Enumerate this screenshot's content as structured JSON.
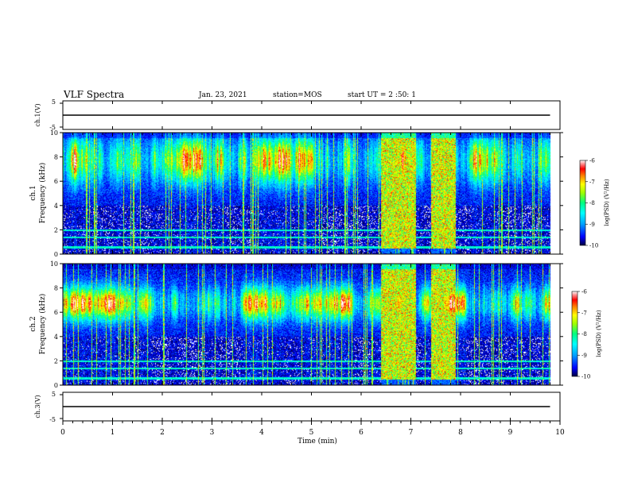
{
  "header": {
    "title": "VLF Spectra",
    "date": "Jan. 23, 2021",
    "station": "station=MOS",
    "start_ut": "start UT =  2 :50: 1"
  },
  "chart_data": [
    {
      "type": "line",
      "panel": "ch1-waveform",
      "ylabel": "ch.1(V)",
      "ylim": [
        -5,
        5
      ],
      "y_ticks": [
        "5",
        "-5"
      ],
      "xlim": [
        0,
        10
      ],
      "series": [
        {
          "x": [
            0,
            9.8
          ],
          "values": [
            0,
            0
          ]
        }
      ]
    },
    {
      "type": "heatmap",
      "panel": "ch1-spectrogram",
      "ylabel": "ch.1\nFrequency (kHz)",
      "ylabel_lines": [
        "ch.1",
        "Frequency (kHz)"
      ],
      "ylim": [
        0,
        10
      ],
      "y_ticks": [
        "0",
        "2",
        "4",
        "6",
        "8",
        "10"
      ],
      "xlim": [
        0,
        10
      ],
      "data_end_min": 9.8,
      "peak_band_khz": [
        6,
        9.5
      ],
      "intense_intervals_min": [
        [
          6.4,
          7.1
        ],
        [
          7.4,
          7.9
        ]
      ],
      "colorbar": {
        "label": "log(PSD) (V²/Hz)",
        "range": [
          -10,
          -6
        ],
        "ticks": [
          "-6",
          "-7",
          "-8",
          "-9",
          "-10"
        ]
      }
    },
    {
      "type": "heatmap",
      "panel": "ch2-spectrogram",
      "ylabel": "ch.2\nFrequency (kHz)",
      "ylabel_lines": [
        "ch.2",
        "Frequency (kHz)"
      ],
      "ylim": [
        0,
        10
      ],
      "y_ticks": [
        "0",
        "2",
        "4",
        "6",
        "8",
        "10"
      ],
      "xlim": [
        0,
        10
      ],
      "data_end_min": 9.8,
      "peak_band_khz": [
        5.5,
        8
      ],
      "intense_intervals_min": [
        [
          6.4,
          7.1
        ],
        [
          7.4,
          7.9
        ]
      ],
      "colorbar": {
        "label": "log(PSD) (V²/Hz)",
        "range": [
          -10,
          -6
        ],
        "ticks": [
          "-6",
          "-7",
          "-8",
          "-9",
          "-10"
        ]
      }
    },
    {
      "type": "line",
      "panel": "ch3-waveform",
      "ylabel": "ch.3(V)",
      "ylim": [
        -5,
        5
      ],
      "y_ticks": [
        "5",
        "-5"
      ],
      "xlim": [
        0,
        10
      ],
      "xlabel": "Time (min)",
      "x_ticks": [
        "0",
        "1",
        "2",
        "3",
        "4",
        "5",
        "6",
        "7",
        "8",
        "9",
        "10"
      ],
      "series": [
        {
          "x": [
            0,
            9.8
          ],
          "values": [
            0,
            0
          ]
        }
      ]
    }
  ],
  "colors": {
    "ink": "#000000",
    "colormap": [
      "#000040",
      "#0000ff",
      "#00a0ff",
      "#00ffff",
      "#00ff80",
      "#a0ff00",
      "#ffff00",
      "#ff8000",
      "#ff0000",
      "#ff9090",
      "#ffffff"
    ]
  }
}
